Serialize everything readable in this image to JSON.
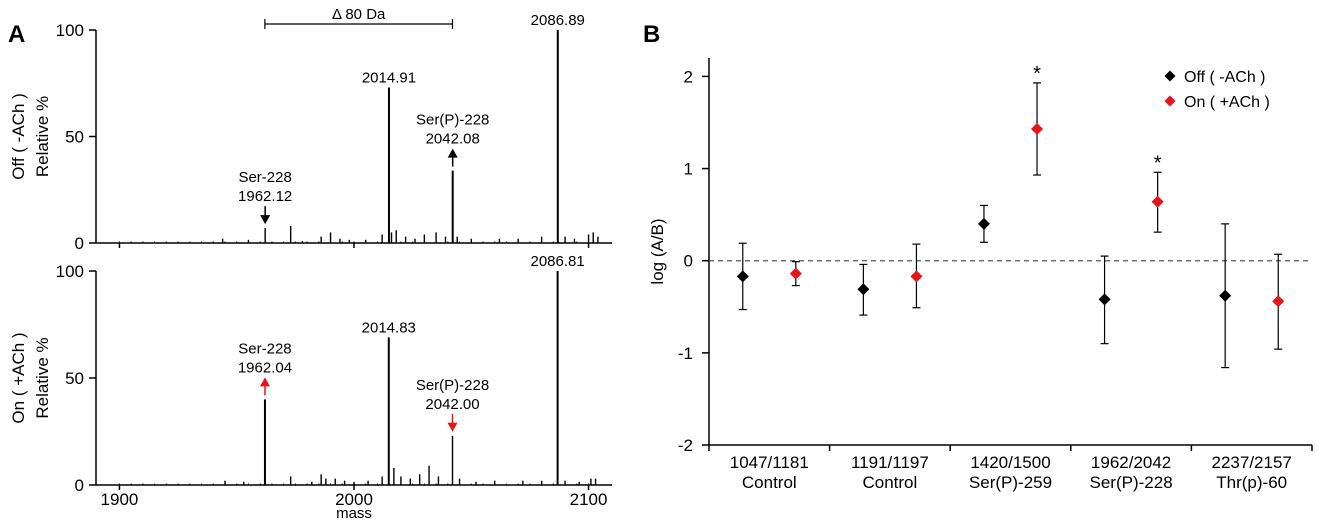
{
  "panels": {
    "a": "A",
    "b": "B"
  },
  "chart_data": [
    {
      "type": "bar",
      "subtype": "mass-spectrum",
      "panel": "A",
      "xlabel": "mass",
      "xlim": [
        1890,
        2110
      ],
      "xticks": [
        1900,
        2000,
        2100
      ],
      "spectra": [
        {
          "ylabel_top": "Off ( -ACh )",
          "ylabel": "Relative %",
          "ylim": [
            0,
            100
          ],
          "yticks": [
            0,
            50,
            100
          ],
          "peaks": [
            {
              "x": 1944,
              "y": 2
            },
            {
              "x": 1955,
              "y": 1.5
            },
            {
              "x": 1962.12,
              "y": 7
            },
            {
              "x": 1973,
              "y": 8
            },
            {
              "x": 1978,
              "y": 1
            },
            {
              "x": 1986,
              "y": 3
            },
            {
              "x": 1990,
              "y": 5
            },
            {
              "x": 1994,
              "y": 2
            },
            {
              "x": 1998,
              "y": 1.5
            },
            {
              "x": 2005,
              "y": 1.5
            },
            {
              "x": 2012,
              "y": 4
            },
            {
              "x": 2014.91,
              "y": 73
            },
            {
              "x": 2016,
              "y": 5
            },
            {
              "x": 2018,
              "y": 6
            },
            {
              "x": 2022,
              "y": 3
            },
            {
              "x": 2026,
              "y": 2
            },
            {
              "x": 2030,
              "y": 4
            },
            {
              "x": 2035,
              "y": 5
            },
            {
              "x": 2039,
              "y": 3
            },
            {
              "x": 2042.08,
              "y": 34
            },
            {
              "x": 2044,
              "y": 3
            },
            {
              "x": 2050,
              "y": 2
            },
            {
              "x": 2062,
              "y": 2
            },
            {
              "x": 2070,
              "y": 2
            },
            {
              "x": 2080,
              "y": 3
            },
            {
              "x": 2086.89,
              "y": 100
            },
            {
              "x": 2090,
              "y": 3
            },
            {
              "x": 2094,
              "y": 2
            },
            {
              "x": 2100,
              "y": 4
            },
            {
              "x": 2102,
              "y": 5
            },
            {
              "x": 2104,
              "y": 3
            }
          ],
          "annotations": [
            {
              "x": 2086.89,
              "y": 100,
              "lines": [
                "2086.89"
              ],
              "arrow": "none"
            },
            {
              "x": 2014.91,
              "y": 73,
              "lines": [
                "2014.91"
              ],
              "arrow": "none"
            },
            {
              "x": 2042.08,
              "y": 34,
              "lines": [
                "Ser(P)-228",
                "2042.08"
              ],
              "arrow": "up",
              "color": "#000000"
            },
            {
              "x": 1962.12,
              "y": 7,
              "lines": [
                "Ser-228",
                "1962.12"
              ],
              "arrow": "down",
              "color": "#000000"
            }
          ],
          "bracket": {
            "x1": 1962,
            "x2": 2042,
            "y": 102,
            "label": "Δ 80 Da"
          }
        },
        {
          "ylabel_top": "On ( +ACh )",
          "ylabel": "Relative %",
          "ylim": [
            0,
            100
          ],
          "yticks": [
            0,
            50,
            100
          ],
          "peaks": [
            {
              "x": 1945,
              "y": 2
            },
            {
              "x": 1953,
              "y": 1.5
            },
            {
              "x": 1962.04,
              "y": 40
            },
            {
              "x": 1973,
              "y": 4
            },
            {
              "x": 1982,
              "y": 1.5
            },
            {
              "x": 1986,
              "y": 5
            },
            {
              "x": 1988,
              "y": 3
            },
            {
              "x": 1992,
              "y": 3
            },
            {
              "x": 1996,
              "y": 2
            },
            {
              "x": 2000,
              "y": 1.5
            },
            {
              "x": 2006,
              "y": 2
            },
            {
              "x": 2012,
              "y": 4
            },
            {
              "x": 2014.83,
              "y": 69
            },
            {
              "x": 2017,
              "y": 8
            },
            {
              "x": 2020,
              "y": 4
            },
            {
              "x": 2024,
              "y": 3
            },
            {
              "x": 2028,
              "y": 5
            },
            {
              "x": 2032,
              "y": 9
            },
            {
              "x": 2036,
              "y": 4
            },
            {
              "x": 2042.0,
              "y": 23
            },
            {
              "x": 2045,
              "y": 3
            },
            {
              "x": 2052,
              "y": 1.5
            },
            {
              "x": 2060,
              "y": 2
            },
            {
              "x": 2072,
              "y": 2
            },
            {
              "x": 2080,
              "y": 2
            },
            {
              "x": 2086.81,
              "y": 100
            },
            {
              "x": 2090,
              "y": 2
            },
            {
              "x": 2096,
              "y": 1.5
            },
            {
              "x": 2101,
              "y": 3
            },
            {
              "x": 2103,
              "y": 3
            }
          ],
          "annotations": [
            {
              "x": 2086.81,
              "y": 100,
              "lines": [
                "2086.81"
              ],
              "arrow": "none"
            },
            {
              "x": 2014.83,
              "y": 69,
              "lines": [
                "2014.83"
              ],
              "arrow": "none"
            },
            {
              "x": 1962.04,
              "y": 40,
              "lines": [
                "Ser-228",
                "1962.04"
              ],
              "arrow": "up",
              "color": "#e8141b"
            },
            {
              "x": 2042.0,
              "y": 23,
              "lines": [
                "Ser(P)-228",
                "2042.00"
              ],
              "arrow": "down",
              "color": "#e8141b"
            }
          ]
        }
      ]
    },
    {
      "type": "scatter",
      "subtype": "error-bar",
      "panel": "B",
      "ylabel": "log (A/B)",
      "xlabel": "",
      "ylim": [
        -2,
        2.2
      ],
      "yticks": [
        -2,
        -1,
        0,
        1,
        2
      ],
      "reference_line": 0,
      "legend_position": "top-right",
      "categories": [
        [
          "1047/1181",
          "Control"
        ],
        [
          "1191/1197",
          "Control"
        ],
        [
          "1420/1500",
          "Ser(P)-259"
        ],
        [
          "1962/2042",
          "Ser(P)-228"
        ],
        [
          "2237/2157",
          "Thr(p)-60"
        ]
      ],
      "series": [
        {
          "name": "Off  ( -ACh )",
          "color": "#000000",
          "values": [
            -0.17,
            -0.31,
            0.4,
            -0.42,
            -0.38
          ],
          "lower": [
            -0.53,
            -0.59,
            0.2,
            -0.9,
            -1.16
          ],
          "upper": [
            0.19,
            -0.04,
            0.6,
            0.05,
            0.4
          ],
          "significant": [
            false,
            false,
            false,
            false,
            false
          ]
        },
        {
          "name": "On  ( +ACh )",
          "color": "#e8141b",
          "values": [
            -0.14,
            -0.17,
            1.43,
            0.64,
            -0.44
          ],
          "lower": [
            -0.27,
            -0.51,
            0.93,
            0.31,
            -0.96
          ],
          "upper": [
            -0.01,
            0.18,
            1.93,
            0.96,
            0.07
          ],
          "significant": [
            false,
            false,
            true,
            true,
            false
          ]
        }
      ],
      "significance_marker": "*"
    }
  ]
}
